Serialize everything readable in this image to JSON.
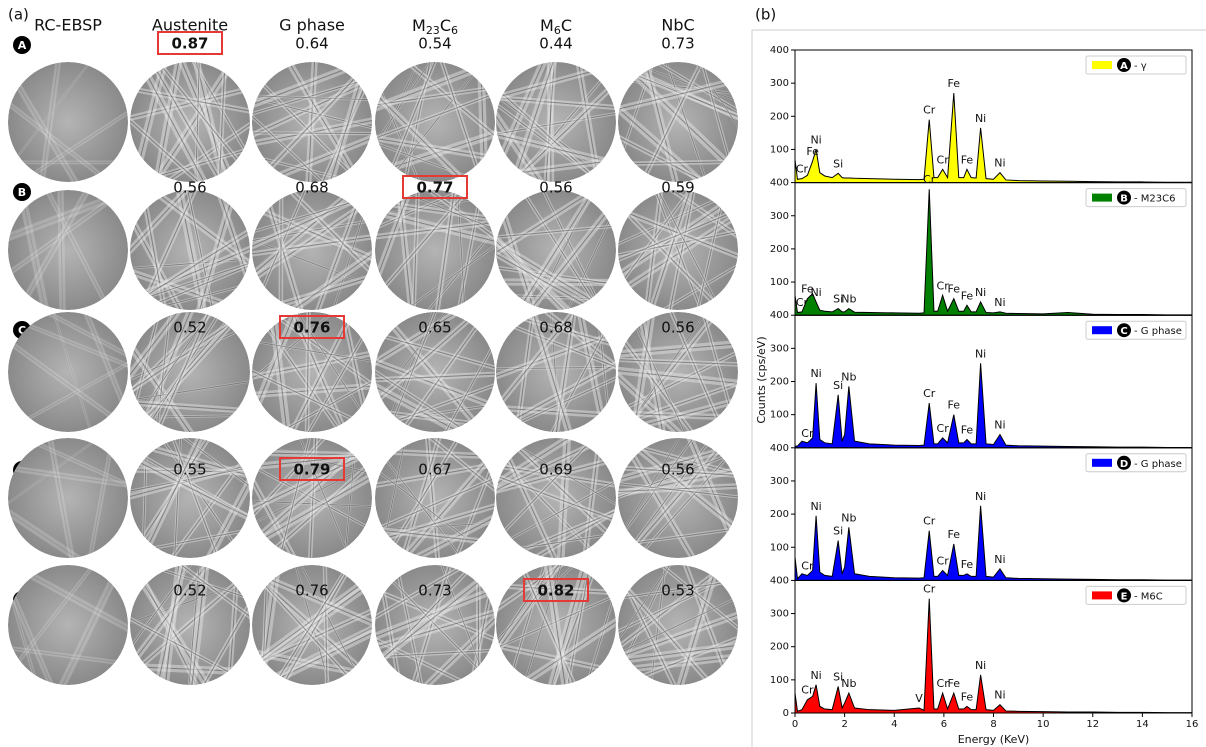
{
  "panel_a": {
    "label": "(a)",
    "columns": [
      "RC-EBSP",
      "Austenite",
      "G phase",
      "M23C6",
      "M6C",
      "NbC"
    ],
    "rows": [
      {
        "label": "A",
        "scores": [
          0.87,
          0.64,
          0.54,
          0.44,
          0.73
        ],
        "best": 0
      },
      {
        "label": "B",
        "scores": [
          0.56,
          0.68,
          0.77,
          0.56,
          0.59
        ],
        "best": 2
      },
      {
        "label": "C",
        "scores": [
          0.52,
          0.76,
          0.65,
          0.68,
          0.56
        ],
        "best": 1
      },
      {
        "label": "D",
        "scores": [
          0.55,
          0.79,
          0.67,
          0.69,
          0.56
        ],
        "best": 1
      },
      {
        "label": "E",
        "scores": [
          0.52,
          0.76,
          0.73,
          0.82,
          0.53
        ],
        "best": 3
      }
    ]
  },
  "panel_b": {
    "label": "(b)",
    "ylabel": "Counts (cps/eV)"
  },
  "chart_data": [
    {
      "type": "area",
      "legend_marker": "A",
      "legend": "upper right",
      "series": [
        {
          "name": "- γ",
          "color": "#ffff00",
          "values": [
            70,
            10,
            12,
            22,
            65,
            100,
            30,
            20,
            15,
            28,
            15,
            14,
            14,
            13,
            12,
            10,
            9,
            10,
            190,
            15,
            15,
            40,
            15,
            270,
            15,
            15,
            40,
            15,
            14,
            165,
            12,
            10,
            30,
            8,
            6,
            5,
            4,
            3,
            2,
            2,
            1,
            1
          ]
        }
      ],
      "x": [
        0,
        0.1,
        0.28,
        0.5,
        0.71,
        0.85,
        1.0,
        1.2,
        1.5,
        1.74,
        1.9,
        2.0,
        2.17,
        2.4,
        3,
        4,
        5,
        5.2,
        5.41,
        5.6,
        5.75,
        5.95,
        6.15,
        6.4,
        6.6,
        6.8,
        6.93,
        7.1,
        7.3,
        7.48,
        7.7,
        8.0,
        8.26,
        8.5,
        9,
        10,
        11,
        12,
        13,
        14,
        15,
        16
      ],
      "xlim": [
        0,
        16
      ],
      "ylim": [
        0,
        400
      ],
      "yticks": [
        100,
        200,
        300,
        400
      ],
      "annotations": [
        {
          "text": "Cr",
          "x": 0.28
        },
        {
          "text": "Fe",
          "x": 0.71
        },
        {
          "text": "Ni",
          "x": 0.85
        },
        {
          "text": "Si",
          "x": 1.74
        },
        {
          "text": "Cr",
          "x": 5.41
        },
        {
          "text": "Cr",
          "x": 5.95
        },
        {
          "text": "Fe",
          "x": 6.4
        },
        {
          "text": "Fe",
          "x": 6.93
        },
        {
          "text": "Ni",
          "x": 7.48
        },
        {
          "text": "Ni",
          "x": 8.26
        }
      ]
    },
    {
      "type": "area",
      "legend_marker": "B",
      "legend": "upper right",
      "series": [
        {
          "name": "- M23C6",
          "color": "#008000",
          "values": [
            60,
            8,
            10,
            50,
            65,
            40,
            15,
            12,
            10,
            20,
            10,
            10,
            20,
            9,
            8,
            7,
            6,
            7,
            380,
            12,
            12,
            60,
            12,
            50,
            12,
            12,
            30,
            10,
            10,
            40,
            8,
            7,
            10,
            6,
            5,
            4,
            8,
            3,
            2,
            2,
            1,
            1
          ]
        }
      ],
      "x": [
        0,
        0.1,
        0.28,
        0.5,
        0.71,
        0.85,
        1.0,
        1.2,
        1.5,
        1.74,
        1.9,
        2.0,
        2.17,
        2.4,
        3,
        4,
        5,
        5.2,
        5.41,
        5.6,
        5.75,
        5.95,
        6.15,
        6.4,
        6.6,
        6.8,
        6.93,
        7.1,
        7.3,
        7.48,
        7.7,
        8.0,
        8.26,
        8.5,
        9,
        10,
        11,
        12,
        13,
        14,
        15,
        16
      ],
      "xlim": [
        0,
        16
      ],
      "ylim": [
        0,
        400
      ],
      "yticks": [
        100,
        200,
        300,
        400
      ],
      "annotations": [
        {
          "text": "Cr",
          "x": 0.28
        },
        {
          "text": "Fe",
          "x": 0.5
        },
        {
          "text": "Ni",
          "x": 0.85
        },
        {
          "text": "Si",
          "x": 1.74
        },
        {
          "text": "Nb",
          "x": 2.17
        },
        {
          "text": "Cr",
          "x": 5.41
        },
        {
          "text": "Cr",
          "x": 5.95
        },
        {
          "text": "Fe",
          "x": 6.4
        },
        {
          "text": "Fe",
          "x": 6.93
        },
        {
          "text": "Ni",
          "x": 7.48
        },
        {
          "text": "Ni",
          "x": 8.26
        }
      ]
    },
    {
      "type": "area",
      "legend_marker": "C",
      "legend": "upper right",
      "series": [
        {
          "name": "- G phase",
          "color": "#0000ff",
          "values": [
            5,
            5,
            20,
            15,
            30,
            195,
            25,
            15,
            12,
            160,
            20,
            40,
            185,
            20,
            12,
            8,
            7,
            8,
            135,
            12,
            12,
            30,
            15,
            100,
            15,
            15,
            25,
            12,
            12,
            255,
            12,
            10,
            40,
            8,
            6,
            5,
            4,
            3,
            2,
            2,
            1,
            1
          ]
        }
      ],
      "x": [
        0,
        0.1,
        0.28,
        0.5,
        0.71,
        0.85,
        1.0,
        1.2,
        1.5,
        1.74,
        1.9,
        2.0,
        2.17,
        2.4,
        3,
        4,
        5,
        5.2,
        5.41,
        5.6,
        5.75,
        5.95,
        6.15,
        6.4,
        6.6,
        6.8,
        6.93,
        7.1,
        7.3,
        7.48,
        7.7,
        8.0,
        8.26,
        8.5,
        9,
        10,
        11,
        12,
        13,
        14,
        15,
        16
      ],
      "xlim": [
        0,
        16
      ],
      "ylim": [
        0,
        400
      ],
      "yticks": [
        100,
        200,
        300,
        400
      ],
      "annotations": [
        {
          "text": "Cr",
          "x": 0.5
        },
        {
          "text": "Ni",
          "x": 0.85
        },
        {
          "text": "Si",
          "x": 1.74
        },
        {
          "text": "Nb",
          "x": 2.17
        },
        {
          "text": "Cr",
          "x": 5.41
        },
        {
          "text": "Cr",
          "x": 5.95
        },
        {
          "text": "Fe",
          "x": 6.4
        },
        {
          "text": "Fe",
          "x": 6.93
        },
        {
          "text": "Ni",
          "x": 7.48
        },
        {
          "text": "Ni",
          "x": 8.26
        }
      ]
    },
    {
      "type": "area",
      "legend_marker": "D",
      "legend": "upper right",
      "series": [
        {
          "name": "- G phase",
          "color": "#0000ff",
          "values": [
            70,
            5,
            20,
            15,
            30,
            195,
            25,
            15,
            12,
            120,
            20,
            40,
            160,
            20,
            12,
            8,
            7,
            8,
            150,
            12,
            12,
            30,
            15,
            110,
            15,
            15,
            20,
            12,
            12,
            225,
            12,
            10,
            35,
            8,
            6,
            5,
            4,
            3,
            2,
            2,
            1,
            1
          ]
        }
      ],
      "x": [
        0,
        0.1,
        0.28,
        0.5,
        0.71,
        0.85,
        1.0,
        1.2,
        1.5,
        1.74,
        1.9,
        2.0,
        2.17,
        2.4,
        3,
        4,
        5,
        5.2,
        5.41,
        5.6,
        5.75,
        5.95,
        6.15,
        6.4,
        6.6,
        6.8,
        6.93,
        7.1,
        7.3,
        7.48,
        7.7,
        8.0,
        8.26,
        8.5,
        9,
        10,
        11,
        12,
        13,
        14,
        15,
        16
      ],
      "xlim": [
        0,
        16
      ],
      "ylim": [
        0,
        400
      ],
      "yticks": [
        100,
        200,
        300,
        400
      ],
      "annotations": [
        {
          "text": "Cr",
          "x": 0.5
        },
        {
          "text": "Ni",
          "x": 0.85
        },
        {
          "text": "Si",
          "x": 1.74
        },
        {
          "text": "Nb",
          "x": 2.17
        },
        {
          "text": "Cr",
          "x": 5.41
        },
        {
          "text": "Cr",
          "x": 5.95
        },
        {
          "text": "Fe",
          "x": 6.4
        },
        {
          "text": "Fe",
          "x": 6.93
        },
        {
          "text": "Ni",
          "x": 7.48
        },
        {
          "text": "Ni",
          "x": 8.26
        }
      ]
    },
    {
      "type": "area",
      "legend_marker": "E",
      "legend": "upper right",
      "series": [
        {
          "name": "- M6C",
          "color": "#ff0000",
          "values": [
            60,
            5,
            10,
            40,
            50,
            85,
            20,
            12,
            10,
            80,
            15,
            30,
            60,
            15,
            10,
            8,
            15,
            8,
            345,
            12,
            12,
            60,
            12,
            60,
            12,
            12,
            20,
            10,
            10,
            115,
            10,
            8,
            25,
            6,
            5,
            4,
            3,
            3,
            2,
            2,
            1,
            1
          ]
        }
      ],
      "x": [
        0,
        0.1,
        0.28,
        0.5,
        0.71,
        0.85,
        1.0,
        1.2,
        1.5,
        1.74,
        1.9,
        2.0,
        2.17,
        2.4,
        3,
        4,
        5,
        5.2,
        5.41,
        5.6,
        5.75,
        5.95,
        6.15,
        6.4,
        6.6,
        6.8,
        6.93,
        7.1,
        7.3,
        7.48,
        7.7,
        8.0,
        8.26,
        8.5,
        9,
        10,
        11,
        12,
        13,
        14,
        15,
        16
      ],
      "xlim": [
        0,
        16
      ],
      "ylim": [
        0,
        400
      ],
      "yticks": [
        0,
        100,
        200,
        300,
        400
      ],
      "xticks": [
        0,
        2,
        4,
        6,
        8,
        10,
        12,
        14,
        16
      ],
      "xlabel": "Energy (KeV)",
      "annotations": [
        {
          "text": "Cr",
          "x": 0.5
        },
        {
          "text": "Ni",
          "x": 0.85
        },
        {
          "text": "Si",
          "x": 1.74
        },
        {
          "text": "Nb",
          "x": 2.17
        },
        {
          "text": "V",
          "x": 5
        },
        {
          "text": "Cr",
          "x": 5.41
        },
        {
          "text": "Cr",
          "x": 5.95
        },
        {
          "text": "Fe",
          "x": 6.4
        },
        {
          "text": "Fe",
          "x": 6.93
        },
        {
          "text": "Ni",
          "x": 7.48
        },
        {
          "text": "Ni",
          "x": 8.26
        }
      ]
    }
  ]
}
